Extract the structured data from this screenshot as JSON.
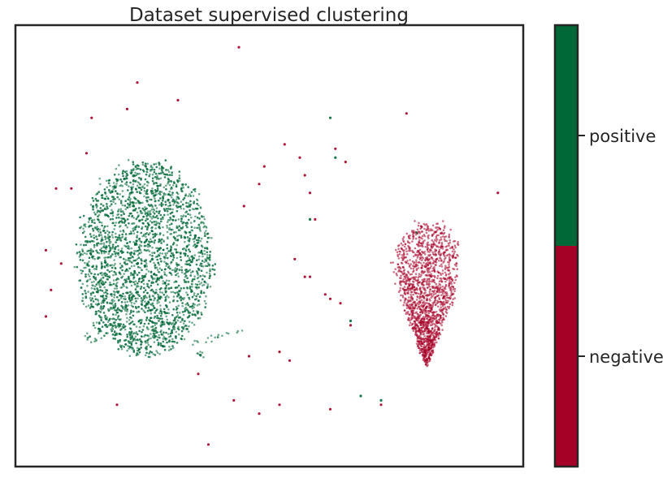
{
  "chart_data": {
    "type": "scatter",
    "title": "Dataset supervised clustering",
    "xlabel": "",
    "ylabel": "",
    "grid": false,
    "colorbar": {
      "position": "right",
      "categories": [
        "negative",
        "positive"
      ],
      "colors": {
        "negative": "#a50026",
        "positive": "#006837"
      }
    },
    "series": [
      {
        "name": "positive",
        "color": "#006837",
        "clusters": [
          {
            "kind": "blob",
            "center": [
              0.255,
              0.53
            ],
            "spread": [
              0.13,
              0.22
            ],
            "count": 3800
          },
          {
            "kind": "tail",
            "from": [
              0.35,
              0.72
            ],
            "to": [
              0.45,
              0.69
            ],
            "count": 18
          },
          {
            "kind": "tail",
            "from": [
              0.16,
              0.72
            ],
            "to": [
              0.14,
              0.7
            ],
            "count": 12
          },
          {
            "kind": "tail",
            "from": [
              0.36,
              0.74
            ],
            "to": [
              0.37,
              0.75
            ],
            "count": 10
          }
        ],
        "outliers": [
          [
            0.62,
            0.21
          ],
          [
            0.58,
            0.44
          ],
          [
            0.79,
            0.47
          ],
          [
            0.72,
            0.85
          ],
          [
            0.68,
            0.84
          ],
          [
            0.66,
            0.67
          ],
          [
            0.63,
            0.3
          ]
        ]
      },
      {
        "name": "negative",
        "color": "#a50026",
        "clusters": [
          {
            "kind": "blob",
            "center": [
              0.79,
              0.61
            ],
            "spread": [
              0.09,
              0.16
            ],
            "count": 1600
          }
        ],
        "outliers": [
          [
            0.44,
            0.05
          ],
          [
            0.24,
            0.13
          ],
          [
            0.32,
            0.17
          ],
          [
            0.22,
            0.19
          ],
          [
            0.15,
            0.21
          ],
          [
            0.77,
            0.2
          ],
          [
            0.14,
            0.29
          ],
          [
            0.08,
            0.37
          ],
          [
            0.11,
            0.37
          ],
          [
            0.06,
            0.51
          ],
          [
            0.09,
            0.54
          ],
          [
            0.07,
            0.6
          ],
          [
            0.06,
            0.66
          ],
          [
            0.45,
            0.41
          ],
          [
            0.48,
            0.36
          ],
          [
            0.53,
            0.27
          ],
          [
            0.56,
            0.3
          ],
          [
            0.57,
            0.34
          ],
          [
            0.58,
            0.38
          ],
          [
            0.59,
            0.44
          ],
          [
            0.63,
            0.28
          ],
          [
            0.65,
            0.31
          ],
          [
            0.95,
            0.38
          ],
          [
            0.49,
            0.32
          ],
          [
            0.55,
            0.53
          ],
          [
            0.57,
            0.57
          ],
          [
            0.61,
            0.61
          ],
          [
            0.62,
            0.62
          ],
          [
            0.64,
            0.63
          ],
          [
            0.66,
            0.68
          ],
          [
            0.46,
            0.75
          ],
          [
            0.52,
            0.74
          ],
          [
            0.54,
            0.76
          ],
          [
            0.43,
            0.85
          ],
          [
            0.52,
            0.86
          ],
          [
            0.48,
            0.88
          ],
          [
            0.62,
            0.87
          ],
          [
            0.72,
            0.86
          ],
          [
            0.2,
            0.86
          ],
          [
            0.38,
            0.95
          ],
          [
            0.36,
            0.79
          ],
          [
            0.58,
            0.57
          ]
        ]
      }
    ]
  }
}
